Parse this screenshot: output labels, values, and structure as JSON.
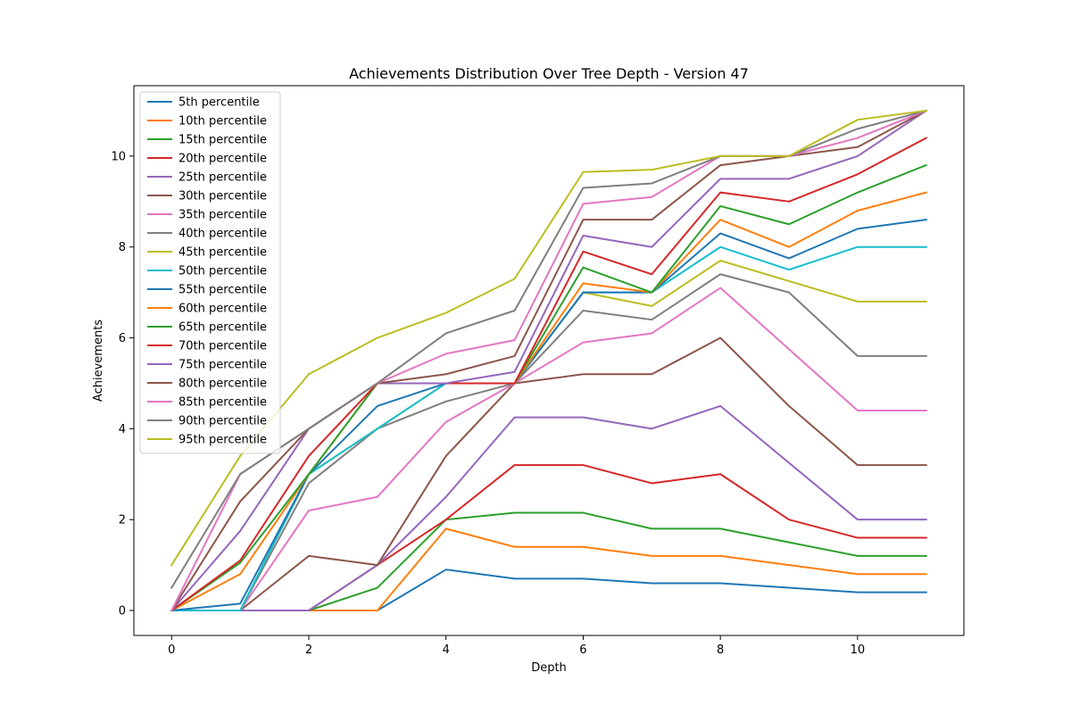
{
  "chart_data": {
    "type": "line",
    "title": "Achievements Distribution Over Tree Depth - Version 47",
    "xlabel": "Depth",
    "ylabel": "Achievements",
    "xlim": [
      -0.55,
      11.55
    ],
    "ylim": [
      -0.55,
      11.55
    ],
    "xticks": [
      0,
      2,
      4,
      6,
      8,
      10
    ],
    "yticks": [
      0,
      2,
      4,
      6,
      8,
      10
    ],
    "grid": false,
    "legend_position": "upper-left",
    "x": [
      0,
      1,
      2,
      3,
      4,
      5,
      6,
      7,
      8,
      9,
      10,
      11
    ],
    "series": [
      {
        "name": "5th percentile",
        "color": "#1f77b4",
        "values": [
          0,
          0,
          0,
          0,
          0.9,
          0.7,
          0.7,
          0.6,
          0.6,
          0.5,
          0.4,
          0.4
        ]
      },
      {
        "name": "10th percentile",
        "color": "#ff7f0e",
        "values": [
          0,
          0,
          0,
          0,
          1.8,
          1.4,
          1.4,
          1.2,
          1.2,
          1.0,
          0.8,
          0.8
        ]
      },
      {
        "name": "15th percentile",
        "color": "#2ca02c",
        "values": [
          0,
          0,
          0,
          0.5,
          2.0,
          2.15,
          2.15,
          1.8,
          1.8,
          1.5,
          1.2,
          1.2
        ]
      },
      {
        "name": "20th percentile",
        "color": "#d62728",
        "values": [
          0,
          0,
          0,
          1.0,
          2.0,
          3.2,
          3.2,
          2.8,
          3.0,
          2.0,
          1.6,
          1.6
        ]
      },
      {
        "name": "25th percentile",
        "color": "#9467bd",
        "values": [
          0,
          0,
          0,
          1.0,
          2.5,
          4.25,
          4.25,
          4.0,
          4.5,
          3.25,
          2.0,
          2.0
        ]
      },
      {
        "name": "30th percentile",
        "color": "#8c564b",
        "values": [
          0,
          0,
          1.2,
          1.0,
          3.4,
          5.0,
          5.2,
          5.2,
          6.0,
          4.5,
          3.2,
          3.2
        ]
      },
      {
        "name": "35th percentile",
        "color": "#e377c2",
        "values": [
          0,
          0,
          2.2,
          2.5,
          4.15,
          5.0,
          5.9,
          6.1,
          7.1,
          5.75,
          4.4,
          4.4
        ]
      },
      {
        "name": "40th percentile",
        "color": "#7f7f7f",
        "values": [
          0,
          0,
          2.8,
          4.0,
          4.6,
          5.0,
          6.6,
          6.4,
          7.4,
          7.0,
          5.6,
          5.6
        ]
      },
      {
        "name": "45th percentile",
        "color": "#bcbd22",
        "values": [
          0,
          0,
          3.0,
          4.0,
          5.0,
          5.0,
          7.0,
          6.7,
          7.7,
          7.25,
          6.8,
          6.8
        ]
      },
      {
        "name": "50th percentile",
        "color": "#17becf",
        "values": [
          0,
          0,
          3.0,
          4.0,
          5.0,
          5.0,
          7.0,
          7.0,
          8.0,
          7.5,
          8.0,
          8.0
        ]
      },
      {
        "name": "55th percentile",
        "color": "#1f77b4",
        "values": [
          0,
          0.15,
          3.0,
          4.5,
          5.0,
          5.0,
          7.0,
          7.0,
          8.3,
          7.75,
          8.4,
          8.6
        ]
      },
      {
        "name": "60th percentile",
        "color": "#ff7f0e",
        "values": [
          0,
          0.8,
          3.0,
          5.0,
          5.0,
          5.0,
          7.2,
          7.0,
          8.6,
          8.0,
          8.8,
          9.2
        ]
      },
      {
        "name": "65th percentile",
        "color": "#2ca02c",
        "values": [
          0,
          1.05,
          3.0,
          5.0,
          5.0,
          5.0,
          7.55,
          7.0,
          8.9,
          8.5,
          9.2,
          9.8
        ]
      },
      {
        "name": "70th percentile",
        "color": "#d62728",
        "values": [
          0,
          1.1,
          3.4,
          5.0,
          5.0,
          5.0,
          7.9,
          7.4,
          9.2,
          9.0,
          9.6,
          10.4
        ]
      },
      {
        "name": "75th percentile",
        "color": "#9467bd",
        "values": [
          0,
          1.75,
          4.0,
          5.0,
          5.0,
          5.25,
          8.25,
          8.0,
          9.5,
          9.5,
          10.0,
          11.0
        ]
      },
      {
        "name": "80th percentile",
        "color": "#8c564b",
        "values": [
          0,
          2.4,
          4.0,
          5.0,
          5.2,
          5.6,
          8.6,
          8.6,
          9.8,
          10.0,
          10.2,
          11.0
        ]
      },
      {
        "name": "85th percentile",
        "color": "#e377c2",
        "values": [
          0,
          3.0,
          4.0,
          5.0,
          5.65,
          5.95,
          8.95,
          9.1,
          10.0,
          10.0,
          10.4,
          11.0
        ]
      },
      {
        "name": "90th percentile",
        "color": "#7f7f7f",
        "values": [
          0.5,
          3.0,
          4.0,
          5.0,
          6.1,
          6.6,
          9.3,
          9.4,
          10.0,
          10.0,
          10.6,
          11.0
        ]
      },
      {
        "name": "95th percentile",
        "color": "#bcbd22",
        "values": [
          1.0,
          3.4,
          5.2,
          6.0,
          6.55,
          7.3,
          9.65,
          9.7,
          10.0,
          10.0,
          10.8,
          11.0
        ]
      }
    ]
  }
}
